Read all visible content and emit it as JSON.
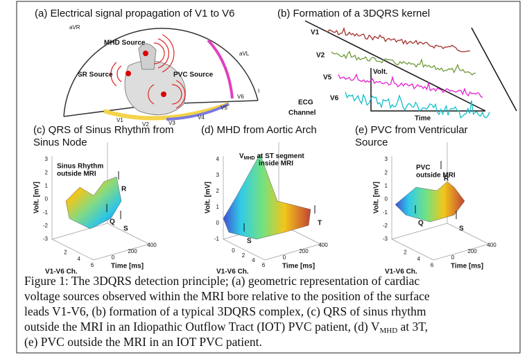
{
  "panel_a": {
    "title": "(a) Electrical signal propagation of V1 to V6",
    "labels": {
      "avr": "aVR",
      "mhd": "MHD Source",
      "sr": "SR Source",
      "pvc": "PVC Source",
      "avl": "aVL",
      "lead_i": "I",
      "v1": "V1",
      "v2": "V2",
      "v3": "V3",
      "v4": "V4",
      "v5": "V5",
      "v6": "V6"
    }
  },
  "panel_b": {
    "title": "(b) Formation of a 3DQRS kernel",
    "channels": [
      "V1",
      "V2",
      "V5",
      "V6"
    ],
    "volt": "Volt.",
    "ecg": "ECG",
    "channel": "Channel",
    "time": "Time"
  },
  "panel_c": {
    "title_lines": [
      "(c) QRS of Sinus Rhythm from",
      "Sinus Node"
    ],
    "annotation": [
      "Sinus Rhythm",
      "outside MRI"
    ],
    "peaks": {
      "r": "R",
      "q": "Q",
      "s": "S"
    },
    "y_label": "Volt. [mV]",
    "x_label": "V1-V6 Ch.",
    "time_label": "Time [ms]",
    "y_ticks": [
      3,
      2,
      1,
      0,
      -1,
      -2,
      -3
    ],
    "ch_ticks": [
      2,
      4,
      6
    ],
    "time_ticks": [
      0,
      200,
      400
    ]
  },
  "panel_d": {
    "title_lines": [
      "(d) MHD from Aortic Arch"
    ],
    "annotation": {
      "v": "V",
      "sub": "MHD",
      "rest": " at ST segment",
      "line2": "inside MRI"
    },
    "peaks": {
      "t": "T",
      "s": "S"
    },
    "y_label": "Volt. [mV]",
    "x_label": "V1-V6 Ch.",
    "time_label": "Time [ms]",
    "y_ticks": [
      4,
      3,
      2,
      1,
      0,
      -1
    ],
    "ch_ticks": [
      0,
      2,
      4,
      6
    ],
    "time_ticks": [
      0,
      200,
      400
    ]
  },
  "panel_e": {
    "title_lines": [
      "(e) PVC from Ventricular",
      "Source"
    ],
    "annotation": [
      "PVC",
      "outside MRI"
    ],
    "peaks": {
      "r": "R",
      "q": "Q",
      "s": "S"
    },
    "y_label": "Volt. [mV]",
    "x_label": "V1-V6 Ch.",
    "time_label": "Time [ms]",
    "y_ticks": [
      3,
      2,
      1,
      0,
      -1,
      -2,
      -3
    ],
    "ch_ticks": [
      2,
      4,
      6
    ],
    "time_ticks": [
      0,
      200,
      400
    ]
  },
  "caption": {
    "line1": "Figure 1: The 3DQRS detection principle; (a) geometric representation of cardiac",
    "line2": "voltage sources observed within the MRI bore relative to the position of the surface",
    "line3": "leads V1-V6, (b) formation of a typical 3DQRS complex, (c) QRS of sinus rhythm",
    "line4": {
      "text": "outside the MRI in an Idiopathic Outflow Tract (IOT) PVC patient, (d) V",
      "sub": "MHD",
      "rest": " at 3T,"
    },
    "line5": "(e) PVC outside the MRI in an IOT PVC patient."
  }
}
